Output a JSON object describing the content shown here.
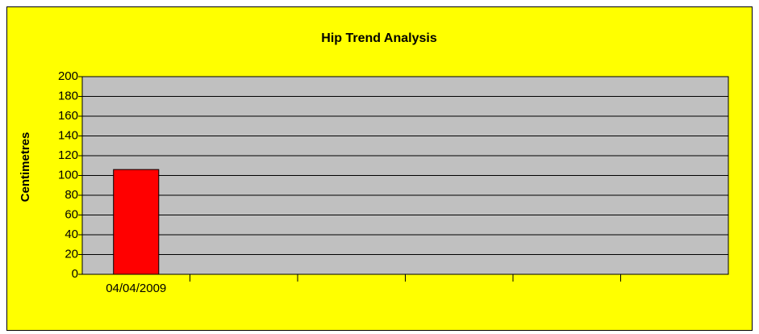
{
  "chart_data": {
    "type": "bar",
    "title": "Hip Trend Analysis",
    "y_label": "Centimetres",
    "categories": [
      "04/04/2009",
      null,
      null,
      null,
      null,
      null
    ],
    "values": [
      106,
      null,
      null,
      null,
      null,
      null
    ],
    "color": "#ff0000",
    "ylim": [
      0,
      200
    ],
    "yticks": [
      0,
      20,
      40,
      60,
      80,
      100,
      120,
      140,
      160,
      180,
      200
    ],
    "grid": true
  }
}
